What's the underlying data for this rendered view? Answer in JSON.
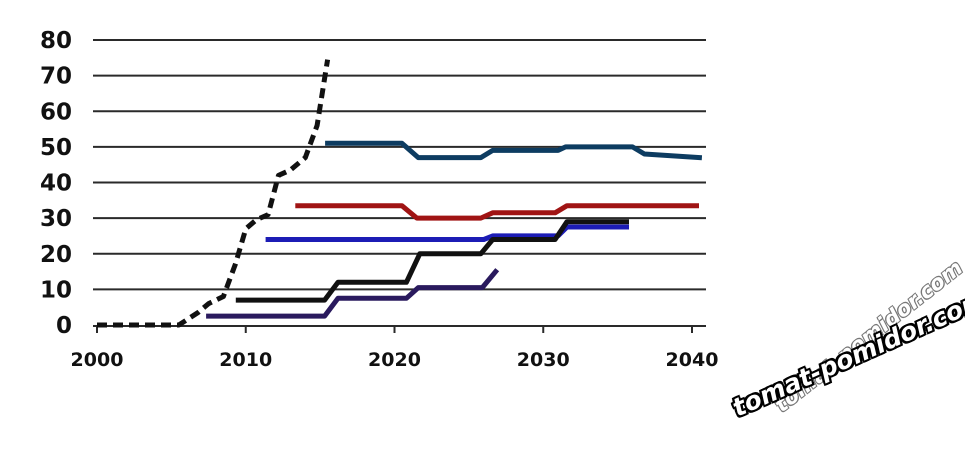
{
  "chart_data": {
    "type": "line",
    "title": "",
    "xlabel": "",
    "ylabel": "",
    "xlim": [
      2000,
      2041
    ],
    "ylim": [
      0,
      80
    ],
    "x_ticks": [
      "2000",
      "2010",
      "2020",
      "2030",
      "2040"
    ],
    "x_tick_values": [
      2000,
      2010,
      2020,
      2030,
      2040
    ],
    "y_ticks": [
      "0",
      "10",
      "20",
      "30",
      "40",
      "50",
      "60",
      "70",
      "80"
    ],
    "y_tick_values": [
      0,
      10,
      20,
      30,
      40,
      50,
      60,
      70,
      80
    ],
    "grid": "horizontal",
    "legend": "none",
    "series": [
      {
        "color": "#111111",
        "style": "dashed",
        "points": [
          [
            2000,
            0
          ],
          [
            2005.5,
            0
          ],
          [
            2006.8,
            3.5
          ],
          [
            2007.5,
            6
          ],
          [
            2008.5,
            8
          ],
          [
            2009.3,
            17
          ],
          [
            2010,
            27
          ],
          [
            2010.7,
            29.5
          ],
          [
            2011.5,
            31
          ],
          [
            2012.2,
            42
          ],
          [
            2013,
            43.5
          ],
          [
            2014,
            47
          ],
          [
            2014.8,
            56
          ],
          [
            2015.5,
            74.5
          ]
        ]
      },
      {
        "color": "#0d3c61",
        "style": "solid",
        "points": [
          [
            2015.5,
            51
          ],
          [
            2020.5,
            51
          ],
          [
            2021.6,
            47
          ],
          [
            2025.8,
            47
          ],
          [
            2026.6,
            49
          ],
          [
            2031,
            49
          ],
          [
            2031.5,
            50
          ],
          [
            2036,
            50
          ],
          [
            2036.8,
            48
          ],
          [
            2040.5,
            47
          ]
        ]
      },
      {
        "color": "#a01414",
        "style": "solid",
        "points": [
          [
            2013.5,
            33.5
          ],
          [
            2020.5,
            33.5
          ],
          [
            2021.5,
            30
          ],
          [
            2025.8,
            30
          ],
          [
            2026.6,
            31.5
          ],
          [
            2030.8,
            31.5
          ],
          [
            2031.6,
            33.5
          ],
          [
            2040.3,
            33.5
          ]
        ]
      },
      {
        "color": "#1c1cb5",
        "style": "solid",
        "points": [
          [
            2011.5,
            24
          ],
          [
            2026,
            24
          ],
          [
            2026.6,
            25
          ],
          [
            2031,
            25
          ],
          [
            2031.6,
            27.5
          ],
          [
            2035.6,
            27.5
          ]
        ]
      },
      {
        "color": "#111111",
        "style": "solid",
        "points": [
          [
            2009.5,
            7
          ],
          [
            2015.3,
            7
          ],
          [
            2016.2,
            12
          ],
          [
            2020.8,
            12
          ],
          [
            2021.7,
            20
          ],
          [
            2025.8,
            20
          ],
          [
            2026.6,
            24
          ],
          [
            2030.8,
            24
          ],
          [
            2031.6,
            29
          ],
          [
            2035.6,
            29
          ]
        ]
      },
      {
        "color": "#2a1a5e",
        "style": "solid",
        "points": [
          [
            2007.5,
            2.5
          ],
          [
            2015.3,
            2.5
          ],
          [
            2016.2,
            7.5
          ],
          [
            2020.8,
            7.5
          ],
          [
            2021.6,
            10.5
          ],
          [
            2025.9,
            10.5
          ],
          [
            2026.8,
            15
          ]
        ]
      }
    ]
  },
  "watermark": {
    "primary": "tomat-pomidor.com",
    "secondary": "tomat-pomidor.com"
  }
}
